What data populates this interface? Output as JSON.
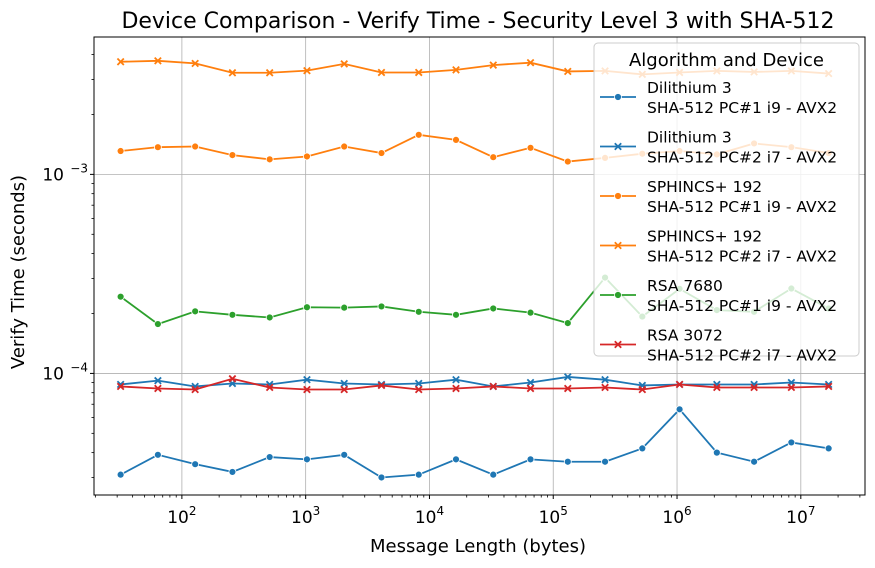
{
  "chart_data": {
    "type": "line",
    "title": "Device Comparison - Verify Time - Security Level 3 with SHA-512",
    "xlabel": "Message Length (bytes)",
    "ylabel": "Verify Time (seconds)",
    "x_scale": "log",
    "y_scale": "log",
    "xlim": [
      19.5,
      33000000
    ],
    "ylim": [
      2.45e-05,
      0.0049
    ],
    "x_ticks": [
      {
        "value": 100,
        "base": "10",
        "exp": "2"
      },
      {
        "value": 1000,
        "base": "10",
        "exp": "3"
      },
      {
        "value": 10000,
        "base": "10",
        "exp": "4"
      },
      {
        "value": 100000,
        "base": "10",
        "exp": "5"
      },
      {
        "value": 1000000,
        "base": "10",
        "exp": "6"
      },
      {
        "value": 10000000,
        "base": "10",
        "exp": "7"
      }
    ],
    "y_ticks": [
      {
        "value": 0.0001,
        "base": "10",
        "exp": "−4"
      },
      {
        "value": 0.001,
        "base": "10",
        "exp": "−3"
      }
    ],
    "grid": true,
    "legend": {
      "title": "Algorithm and Device",
      "placement": "top-right"
    },
    "x": [
      32,
      64,
      128,
      256,
      512,
      1024,
      2048,
      4096,
      8192,
      16384,
      32768,
      65536,
      131072,
      262144,
      524288,
      1048576,
      2097152,
      4194304,
      8388608,
      16777216
    ],
    "series": [
      {
        "name": "Dilithium 3\nSHA-512 PC#1 i9 - AVX2",
        "name_lines": [
          "Dilithium 3",
          "SHA-512 PC#1 i9 - AVX2"
        ],
        "color": "#1f77b4",
        "marker": "circle",
        "values": [
          3.1e-05,
          3.9e-05,
          3.5e-05,
          3.2e-05,
          3.8e-05,
          3.7e-05,
          3.9e-05,
          3e-05,
          3.1e-05,
          3.7e-05,
          3.1e-05,
          3.7e-05,
          3.6e-05,
          3.6e-05,
          4.2e-05,
          6.6e-05,
          4e-05,
          3.6e-05,
          4.5e-05,
          4.2e-05
        ]
      },
      {
        "name": "Dilithium 3\nSHA-512 PC#2 i7 - AVX2",
        "name_lines": [
          "Dilithium 3",
          "SHA-512 PC#2 i7 - AVX2"
        ],
        "color": "#1f77b4",
        "marker": "x",
        "values": [
          8.8e-05,
          9.2e-05,
          8.6e-05,
          8.9e-05,
          8.8e-05,
          9.3e-05,
          8.9e-05,
          8.8e-05,
          8.9e-05,
          9.3e-05,
          8.6e-05,
          9e-05,
          9.6e-05,
          9.3e-05,
          8.7e-05,
          8.8e-05,
          8.8e-05,
          8.8e-05,
          9e-05,
          8.8e-05
        ]
      },
      {
        "name": "SPHINCS+ 192\nSHA-512 PC#1 i9 - AVX2",
        "name_lines": [
          "SPHINCS+ 192",
          "SHA-512 PC#1 i9 - AVX2"
        ],
        "color": "#ff7f0e",
        "marker": "circle",
        "values": [
          0.00131,
          0.00137,
          0.00138,
          0.00125,
          0.00119,
          0.00123,
          0.00138,
          0.00128,
          0.00158,
          0.00149,
          0.00122,
          0.00136,
          0.00116,
          0.00121,
          0.00127,
          0.00131,
          0.00126,
          0.00143,
          0.00137,
          0.00128
        ]
      },
      {
        "name": "SPHINCS+ 192\nSHA-512 PC#2 i7 - AVX2",
        "name_lines": [
          "SPHINCS+ 192",
          "SHA-512 PC#2 i7 - AVX2"
        ],
        "color": "#ff7f0e",
        "marker": "x",
        "values": [
          0.00368,
          0.00372,
          0.00361,
          0.00324,
          0.00324,
          0.00332,
          0.00359,
          0.00325,
          0.00325,
          0.00335,
          0.00354,
          0.00364,
          0.00329,
          0.00331,
          0.00318,
          0.00325,
          0.00331,
          0.00327,
          0.00331,
          0.00321
        ]
      },
      {
        "name": "RSA 7680\nSHA-512 PC#1 i9 - AVX2",
        "name_lines": [
          "RSA 7680",
          "SHA-512 PC#1 i9 - AVX2"
        ],
        "color": "#2ca02c",
        "marker": "circle",
        "values": [
          0.000243,
          0.000177,
          0.000205,
          0.000197,
          0.000191,
          0.000215,
          0.000214,
          0.000217,
          0.000204,
          0.000197,
          0.000212,
          0.000202,
          0.000179,
          0.000303,
          0.000193,
          0.000266,
          0.000208,
          0.000204,
          0.000267,
          0.000212
        ]
      },
      {
        "name": "RSA 3072\nSHA-512 PC#2 i7 - AVX2",
        "name_lines": [
          "RSA 3072",
          "SHA-512 PC#2 i7 - AVX2"
        ],
        "color": "#d62728",
        "marker": "x",
        "values": [
          8.6e-05,
          8.4e-05,
          8.3e-05,
          9.4e-05,
          8.5e-05,
          8.3e-05,
          8.3e-05,
          8.7e-05,
          8.3e-05,
          8.4e-05,
          8.6e-05,
          8.4e-05,
          8.4e-05,
          8.5e-05,
          8.3e-05,
          8.8e-05,
          8.5e-05,
          8.5e-05,
          8.5e-05,
          8.6e-05
        ]
      }
    ]
  }
}
